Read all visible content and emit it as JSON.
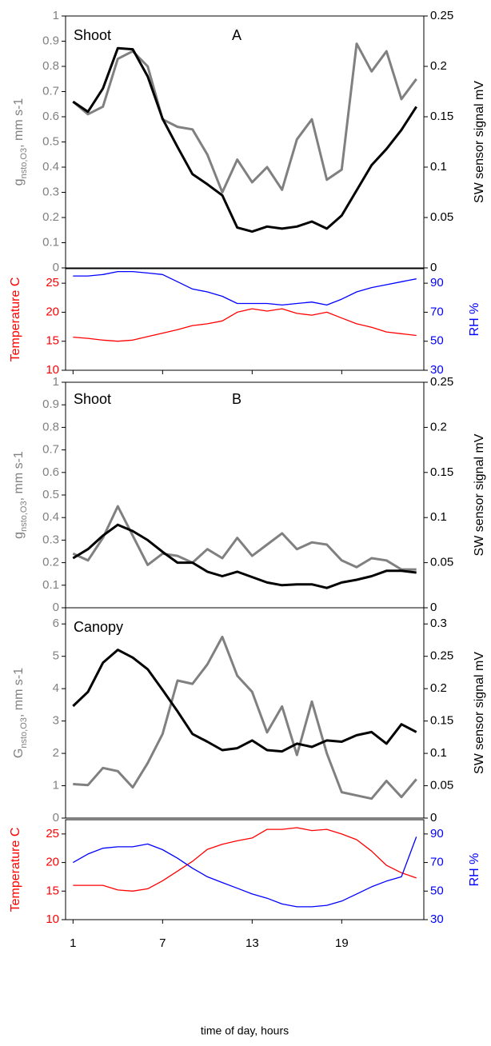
{
  "chart_data": [
    {
      "type": "line",
      "annotations": [
        "Shoot",
        "A"
      ],
      "ylabel": [
        "g",
        "nsto,O3",
        ", mm s-1"
      ],
      "y2label": "SW sensor signal mV",
      "xlim": [
        0.5,
        24.5
      ],
      "x": [
        1,
        2,
        3,
        4,
        5,
        6,
        7,
        8,
        9,
        10,
        11,
        12,
        13,
        14,
        15,
        16,
        17,
        18,
        19,
        20,
        21,
        22,
        23,
        24
      ],
      "ylim": [
        0,
        1
      ],
      "yticks": [
        0,
        0.1,
        0.2,
        0.3,
        0.4,
        0.5,
        0.6,
        0.7,
        0.8,
        0.9,
        1
      ],
      "y2lim": [
        0,
        0.25
      ],
      "y2ticks": [
        0,
        0.05,
        0.1,
        0.15,
        0.2,
        0.25
      ],
      "series": [
        {
          "color": "#808080",
          "values": [
            0.66,
            0.61,
            0.64,
            0.83,
            0.86,
            0.8,
            0.59,
            0.56,
            0.55,
            0.45,
            0.3,
            0.43,
            0.34,
            0.4,
            0.31,
            0.51,
            0.59,
            0.35,
            0.39,
            0.89,
            0.78,
            0.86,
            0.67,
            0.75
          ]
        },
        {
          "color": "#000000",
          "axis": "y2",
          "values": [
            0.165,
            0.155,
            0.178,
            0.218,
            0.217,
            0.19,
            0.148,
            0.12,
            0.093,
            0.083,
            0.072,
            0.04,
            0.036,
            0.041,
            0.039,
            0.041,
            0.046,
            0.039,
            0.052,
            0.077,
            0.102,
            0.118,
            0.137,
            0.16
          ]
        }
      ]
    },
    {
      "type": "line",
      "ylabel": [
        "Temperature C"
      ],
      "y2label": "RH %",
      "xlim": [
        0.5,
        24.5
      ],
      "x": [
        1,
        2,
        3,
        4,
        5,
        6,
        7,
        8,
        9,
        10,
        11,
        12,
        13,
        14,
        15,
        16,
        17,
        18,
        19,
        20,
        21,
        22,
        23,
        24
      ],
      "ylim": [
        10,
        27.5
      ],
      "yticks": [
        10,
        15,
        20,
        25
      ],
      "y2lim": [
        30,
        100
      ],
      "y2ticks": [
        30,
        50,
        70,
        90
      ],
      "series": [
        {
          "color": "#ff0000",
          "values": [
            15.7,
            15.5,
            15.2,
            15.0,
            15.2,
            15.8,
            16.4,
            17.0,
            17.7,
            18.0,
            18.5,
            20.0,
            20.6,
            20.2,
            20.6,
            19.8,
            19.5,
            20.0,
            19.0,
            18.0,
            17.4,
            16.6,
            16.3,
            16.0
          ]
        },
        {
          "color": "#0000ff",
          "axis": "y2",
          "values": [
            95,
            95,
            96,
            98,
            98,
            97,
            96,
            91,
            86,
            84,
            81,
            76,
            76,
            76,
            75,
            76,
            77,
            75,
            79,
            84,
            87,
            89,
            91,
            93
          ]
        }
      ]
    },
    {
      "type": "line",
      "annotations": [
        "Shoot",
        "B"
      ],
      "ylabel": [
        "g",
        "nsto,O3",
        ", mm s-1"
      ],
      "y2label": "SW sensor signal mV",
      "xlim": [
        0.5,
        24.5
      ],
      "x": [
        1,
        2,
        3,
        4,
        5,
        6,
        7,
        8,
        9,
        10,
        11,
        12,
        13,
        14,
        15,
        16,
        17,
        18,
        19,
        20,
        21,
        22,
        23,
        24
      ],
      "ylim": [
        0,
        1
      ],
      "yticks": [
        0,
        0.1,
        0.2,
        0.3,
        0.4,
        0.5,
        0.6,
        0.7,
        0.8,
        0.9,
        1
      ],
      "y2lim": [
        0,
        0.25
      ],
      "y2ticks": [
        0,
        0.05,
        0.1,
        0.15,
        0.2,
        0.25
      ],
      "series": [
        {
          "color": "#808080",
          "values": [
            0.24,
            0.21,
            0.31,
            0.45,
            0.32,
            0.19,
            0.24,
            0.23,
            0.2,
            0.26,
            0.22,
            0.31,
            0.23,
            0.28,
            0.33,
            0.26,
            0.29,
            0.28,
            0.21,
            0.18,
            0.22,
            0.21,
            0.17,
            0.17
          ]
        },
        {
          "color": "#000000",
          "axis": "y2",
          "values": [
            0.055,
            0.065,
            0.08,
            0.092,
            0.085,
            0.075,
            0.062,
            0.05,
            0.05,
            0.04,
            0.035,
            0.04,
            0.034,
            0.028,
            0.025,
            0.026,
            0.026,
            0.022,
            0.028,
            0.031,
            0.035,
            0.041,
            0.041,
            0.039
          ]
        }
      ]
    },
    {
      "type": "line",
      "annotations": [
        "Canopy"
      ],
      "ylabel": [
        "G",
        "nsto,O3",
        ", mm s-1"
      ],
      "y2label": "SW sensor signal mV",
      "xlim": [
        0.5,
        24.5
      ],
      "x": [
        1,
        2,
        3,
        4,
        5,
        6,
        7,
        8,
        9,
        10,
        11,
        12,
        13,
        14,
        15,
        16,
        17,
        18,
        19,
        20,
        21,
        22,
        23,
        24
      ],
      "ylim": [
        0,
        6.5
      ],
      "yticks": [
        0,
        1,
        2,
        3,
        4,
        5,
        6
      ],
      "y2lim": [
        0,
        0.325
      ],
      "y2ticks": [
        0,
        0.05,
        0.1,
        0.15,
        0.2,
        0.25,
        0.3
      ],
      "series": [
        {
          "color": "#808080",
          "values": [
            1.05,
            1.02,
            1.55,
            1.45,
            0.95,
            1.7,
            2.6,
            4.25,
            4.15,
            4.75,
            5.6,
            4.4,
            3.9,
            2.65,
            3.45,
            1.95,
            3.6,
            2.0,
            0.8,
            0.7,
            0.6,
            1.15,
            0.65,
            1.2
          ]
        },
        {
          "color": "#000000",
          "axis": "y2",
          "values": [
            0.173,
            0.195,
            0.24,
            0.26,
            0.248,
            0.23,
            0.198,
            0.165,
            0.13,
            0.118,
            0.105,
            0.108,
            0.12,
            0.105,
            0.103,
            0.115,
            0.11,
            0.12,
            0.118,
            0.128,
            0.133,
            0.115,
            0.145,
            0.133
          ]
        }
      ]
    },
    {
      "type": "line",
      "ylabel": [
        "Temperature C"
      ],
      "y2label": "RH %",
      "xlabel": "time of day, hours",
      "xlim": [
        0.5,
        24.5
      ],
      "x": [
        1,
        2,
        3,
        4,
        5,
        6,
        7,
        8,
        9,
        10,
        11,
        12,
        13,
        14,
        15,
        16,
        17,
        18,
        19,
        20,
        21,
        22,
        23,
        24
      ],
      "xticks": [
        1,
        7,
        13,
        19
      ],
      "ylim": [
        10,
        27.5
      ],
      "yticks": [
        10,
        15,
        20,
        25
      ],
      "y2lim": [
        30,
        100
      ],
      "y2ticks": [
        30,
        50,
        70,
        90
      ],
      "series": [
        {
          "color": "#ff0000",
          "values": [
            16,
            16,
            16,
            15.2,
            15,
            15.4,
            16.8,
            18.5,
            20.2,
            22.3,
            23.2,
            23.8,
            24.3,
            25.8,
            25.8,
            26.1,
            25.6,
            25.8,
            25.0,
            24.0,
            22.0,
            19.5,
            18.2,
            17.3
          ]
        },
        {
          "color": "#0000ff",
          "axis": "y2",
          "values": [
            70,
            76,
            80,
            81,
            81,
            83,
            79,
            73,
            66,
            60,
            56,
            52,
            48,
            45,
            41,
            39,
            39,
            40,
            43,
            48,
            53,
            57,
            60,
            88
          ]
        }
      ]
    }
  ]
}
